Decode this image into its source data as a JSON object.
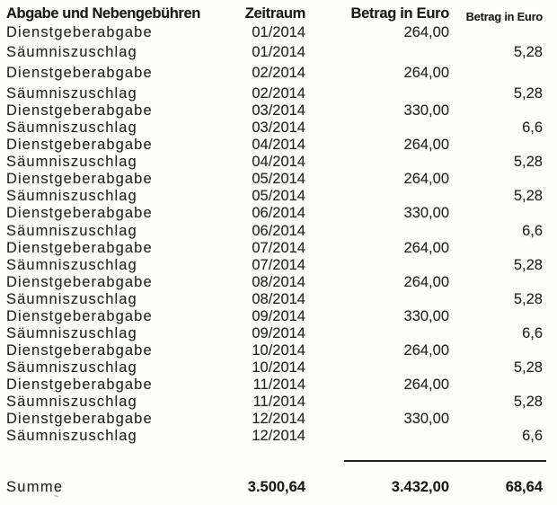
{
  "document": {
    "colors": {
      "background": "#fcfcfa",
      "text": "#242424",
      "bold_text": "#1a1a1a",
      "divider": "#1f1f1f"
    },
    "table": {
      "headers": {
        "fee_type": "Abgabe und Nebengebühren",
        "period": "Zeitraum",
        "amount_1": "Betrag in Euro",
        "amount_2": "Betrag in Euro"
      },
      "rows": [
        {
          "label": "Dienstgeberabgabe",
          "period": "01/2014",
          "amount": "264,00",
          "surcharge": ""
        },
        {
          "label": "Säumniszuschlag",
          "period": "01/2014",
          "amount": "",
          "surcharge": "5,28"
        },
        {
          "label": "Dienstgeberabgabe",
          "period": "02/2014",
          "amount": "264,00",
          "surcharge": ""
        },
        {
          "label": "Säumniszuschlag",
          "period": "02/2014",
          "amount": "",
          "surcharge": "5,28"
        },
        {
          "label": "Dienstgeberabgabe",
          "period": "03/2014",
          "amount": "330,00",
          "surcharge": ""
        },
        {
          "label": "Säumniszuschlag",
          "period": "03/2014",
          "amount": "",
          "surcharge": "6,6"
        },
        {
          "label": "Dienstgeberabgabe",
          "period": "04/2014",
          "amount": "264,00",
          "surcharge": ""
        },
        {
          "label": "Säumniszuschlag",
          "period": "04/2014",
          "amount": "",
          "surcharge": "5,28"
        },
        {
          "label": "Dienstgeberabgabe",
          "period": "05/2014",
          "amount": "264,00",
          "surcharge": ""
        },
        {
          "label": "Säumniszuschlag",
          "period": "05/2014",
          "amount": "",
          "surcharge": "5,28"
        },
        {
          "label": "Dienstgeberabgabe",
          "period": "06/2014",
          "amount": "330,00",
          "surcharge": ""
        },
        {
          "label": "Säumniszuschlag",
          "period": "06/2014",
          "amount": "",
          "surcharge": "6,6"
        },
        {
          "label": "Dienstgeberabgabe",
          "period": "07/2014",
          "amount": "264,00",
          "surcharge": ""
        },
        {
          "label": "Säumniszuschlag",
          "period": "07/2014",
          "amount": "",
          "surcharge": "5,28"
        },
        {
          "label": "Dienstgeberabgabe",
          "period": "08/2014",
          "amount": "264,00",
          "surcharge": ""
        },
        {
          "label": "Säumniszuschlag",
          "period": "08/2014",
          "amount": "",
          "surcharge": "5,28"
        },
        {
          "label": "Dienstgeberabgabe",
          "period": "09/2014",
          "amount": "330,00",
          "surcharge": ""
        },
        {
          "label": "Säumniszuschlag",
          "period": "09/2014",
          "amount": "",
          "surcharge": "6,6"
        },
        {
          "label": "Dienstgeberabgabe",
          "period": "10/2014",
          "amount": "264,00",
          "surcharge": ""
        },
        {
          "label": "Säumniszuschlag",
          "period": "10/2014",
          "amount": "",
          "surcharge": "5,28"
        },
        {
          "label": "Dienstgeberabgabe",
          "period": "11/2014",
          "amount": "264,00",
          "surcharge": ""
        },
        {
          "label": "Säumniszuschlag",
          "period": "11/2014",
          "amount": "",
          "surcharge": "5,28"
        },
        {
          "label": "Dienstgeberabgabe",
          "period": "12/2014",
          "amount": "330,00",
          "surcharge": ""
        },
        {
          "label": "Säumniszuschlag",
          "period": "12/2014",
          "amount": "",
          "surcharge": "6,6"
        }
      ],
      "sum": {
        "label": "Summe",
        "grand_total": "3.500,64",
        "amount_total": "3.432,00",
        "surcharge_total": "68,64"
      }
    }
  }
}
